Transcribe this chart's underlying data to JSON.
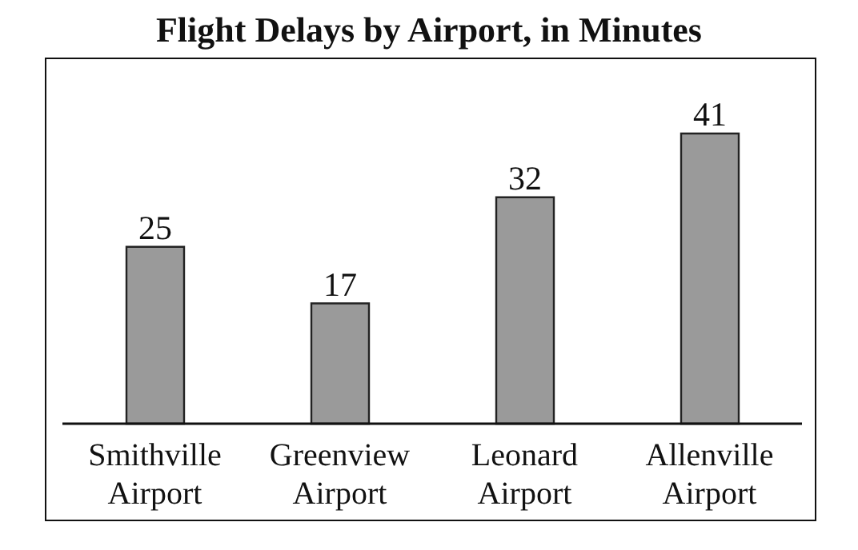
{
  "chart_data": {
    "type": "bar",
    "title": "Flight Delays by Airport, in Minutes",
    "categories": [
      "Smithville Airport",
      "Greenview Airport",
      "Leonard Airport",
      "Allenville Airport"
    ],
    "values": [
      25,
      17,
      32,
      41
    ],
    "color": "#9a9a9a",
    "data_labels": true,
    "grid": false
  }
}
